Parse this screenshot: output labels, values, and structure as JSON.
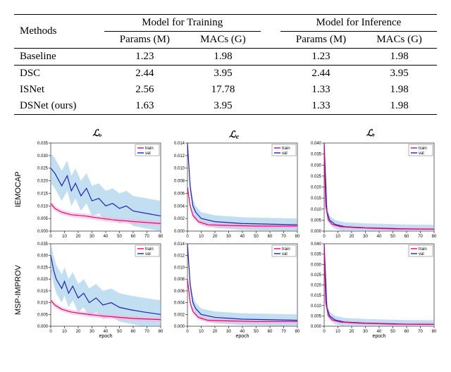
{
  "table": {
    "header": {
      "methods": "Methods",
      "train": "Model for Training",
      "infer": "Model for Inference",
      "params": "Params (M)",
      "macs": "MACs (G)"
    },
    "rows": [
      {
        "name": "Baseline",
        "tp": "1.23",
        "tm": "1.98",
        "ip": "1.23",
        "im": "1.98",
        "sep_above": true
      },
      {
        "name": "DSC",
        "tp": "2.44",
        "tm": "3.95",
        "ip": "2.44",
        "im": "3.95",
        "sep_above": true
      },
      {
        "name": "ISNet",
        "tp": "2.56",
        "tm": "17.78",
        "ip": "1.33",
        "im": "1.98"
      },
      {
        "name": "DSNet (ours)",
        "tp": "1.63",
        "tm": "3.95",
        "ip": "1.33",
        "im": "1.98"
      }
    ]
  },
  "fig": {
    "col_titles": [
      "ℒₒ",
      "ℒ꜀",
      "ℒᵣ"
    ],
    "row_titles": [
      "IEMOCAP",
      "MSP-IMPROV"
    ],
    "xlabel": "epoch",
    "legend": [
      "train",
      "val"
    ],
    "colors": {
      "train": "#e6007e",
      "val": "#2020c0",
      "val_fill": "#8fc4e8",
      "train_fill": "#f7b6d2",
      "axis": "#000000",
      "bg": "#ffffff"
    },
    "xlim": [
      0,
      80
    ],
    "xticks": [
      0,
      10,
      20,
      30,
      40,
      50,
      60,
      70,
      80
    ],
    "panels": {
      "Lo": {
        "ylim": [
          0,
          0.035
        ],
        "yticks": [
          0,
          0.005,
          0.01,
          0.015,
          0.02,
          0.025,
          0.03,
          0.035
        ]
      },
      "Lc": {
        "ylim": [
          0,
          0.014
        ],
        "yticks": [
          0,
          0.002,
          0.004,
          0.006,
          0.008,
          0.01,
          0.012,
          0.014
        ]
      },
      "Lr": {
        "ylim": [
          0,
          0.04
        ],
        "yticks": [
          0,
          0.005,
          0.01,
          0.015,
          0.02,
          0.025,
          0.03,
          0.035,
          0.04
        ]
      }
    },
    "data": {
      "IEMOCAP": {
        "Lo": {
          "train": [
            [
              0,
              0.011
            ],
            [
              3,
              0.009
            ],
            [
              8,
              0.0075
            ],
            [
              15,
              0.0065
            ],
            [
              25,
              0.006
            ],
            [
              35,
              0.0052
            ],
            [
              45,
              0.0045
            ],
            [
              60,
              0.0038
            ],
            [
              80,
              0.003
            ]
          ],
          "val": [
            [
              0,
              0.025
            ],
            [
              3,
              0.023
            ],
            [
              6,
              0.02
            ],
            [
              8,
              0.018
            ],
            [
              12,
              0.022
            ],
            [
              15,
              0.016
            ],
            [
              18,
              0.019
            ],
            [
              22,
              0.014
            ],
            [
              26,
              0.017
            ],
            [
              30,
              0.012
            ],
            [
              35,
              0.013
            ],
            [
              40,
              0.01
            ],
            [
              45,
              0.011
            ],
            [
              50,
              0.009
            ],
            [
              55,
              0.01
            ],
            [
              60,
              0.008
            ],
            [
              70,
              0.007
            ],
            [
              80,
              0.006
            ]
          ],
          "val_spread": 0.006,
          "train_spread": 0.001
        },
        "Lc": {
          "train": [
            [
              0,
              0.007
            ],
            [
              2,
              0.004
            ],
            [
              4,
              0.0025
            ],
            [
              8,
              0.0015
            ],
            [
              15,
              0.001
            ],
            [
              30,
              0.0009
            ],
            [
              50,
              0.0008
            ],
            [
              80,
              0.0008
            ]
          ],
          "val": [
            [
              0,
              0.014
            ],
            [
              2,
              0.007
            ],
            [
              4,
              0.004
            ],
            [
              6,
              0.003
            ],
            [
              10,
              0.002
            ],
            [
              20,
              0.0015
            ],
            [
              40,
              0.0012
            ],
            [
              80,
              0.001
            ]
          ],
          "val_spread": 0.001,
          "train_spread": 0.0004
        },
        "Lr": {
          "train": [
            [
              0,
              0.04
            ],
            [
              1,
              0.012
            ],
            [
              3,
              0.005
            ],
            [
              6,
              0.003
            ],
            [
              12,
              0.002
            ],
            [
              25,
              0.0015
            ],
            [
              50,
              0.001
            ],
            [
              80,
              0.0009
            ]
          ],
          "val": [
            [
              0,
              0.04
            ],
            [
              2,
              0.009
            ],
            [
              4,
              0.005
            ],
            [
              8,
              0.003
            ],
            [
              15,
              0.002
            ],
            [
              30,
              0.0015
            ],
            [
              60,
              0.001
            ],
            [
              80,
              0.0009
            ]
          ],
          "val_spread": 0.002,
          "train_spread": 0.0008
        }
      },
      "MSP": {
        "Lo": {
          "train": [
            [
              0,
              0.011
            ],
            [
              3,
              0.009
            ],
            [
              8,
              0.0072
            ],
            [
              15,
              0.006
            ],
            [
              25,
              0.0052
            ],
            [
              35,
              0.0045
            ],
            [
              45,
              0.004
            ],
            [
              60,
              0.0033
            ],
            [
              80,
              0.0028
            ]
          ],
          "val": [
            [
              0,
              0.03
            ],
            [
              2,
              0.024
            ],
            [
              4,
              0.02
            ],
            [
              6,
              0.018
            ],
            [
              8,
              0.016
            ],
            [
              10,
              0.019
            ],
            [
              13,
              0.014
            ],
            [
              16,
              0.017
            ],
            [
              20,
              0.012
            ],
            [
              24,
              0.014
            ],
            [
              28,
              0.01
            ],
            [
              33,
              0.012
            ],
            [
              38,
              0.009
            ],
            [
              44,
              0.01
            ],
            [
              50,
              0.008
            ],
            [
              58,
              0.007
            ],
            [
              68,
              0.006
            ],
            [
              80,
              0.005
            ]
          ],
          "val_spread": 0.006,
          "train_spread": 0.001
        },
        "Lc": {
          "train": [
            [
              0,
              0.008
            ],
            [
              2,
              0.004
            ],
            [
              4,
              0.0025
            ],
            [
              8,
              0.0015
            ],
            [
              15,
              0.001
            ],
            [
              30,
              0.0009
            ],
            [
              50,
              0.0008
            ],
            [
              80,
              0.0008
            ]
          ],
          "val": [
            [
              0,
              0.014
            ],
            [
              2,
              0.007
            ],
            [
              4,
              0.004
            ],
            [
              6,
              0.003
            ],
            [
              10,
              0.002
            ],
            [
              20,
              0.0015
            ],
            [
              40,
              0.0012
            ],
            [
              80,
              0.001
            ]
          ],
          "val_spread": 0.001,
          "train_spread": 0.0004
        },
        "Lr": {
          "train": [
            [
              0,
              0.04
            ],
            [
              1,
              0.012
            ],
            [
              3,
              0.005
            ],
            [
              6,
              0.003
            ],
            [
              12,
              0.002
            ],
            [
              25,
              0.0015
            ],
            [
              50,
              0.001
            ],
            [
              80,
              0.0009
            ]
          ],
          "val": [
            [
              0,
              0.04
            ],
            [
              2,
              0.009
            ],
            [
              4,
              0.005
            ],
            [
              8,
              0.003
            ],
            [
              15,
              0.002
            ],
            [
              30,
              0.0015
            ],
            [
              60,
              0.001
            ],
            [
              80,
              0.0009
            ]
          ],
          "val_spread": 0.002,
          "train_spread": 0.0008
        }
      }
    }
  }
}
